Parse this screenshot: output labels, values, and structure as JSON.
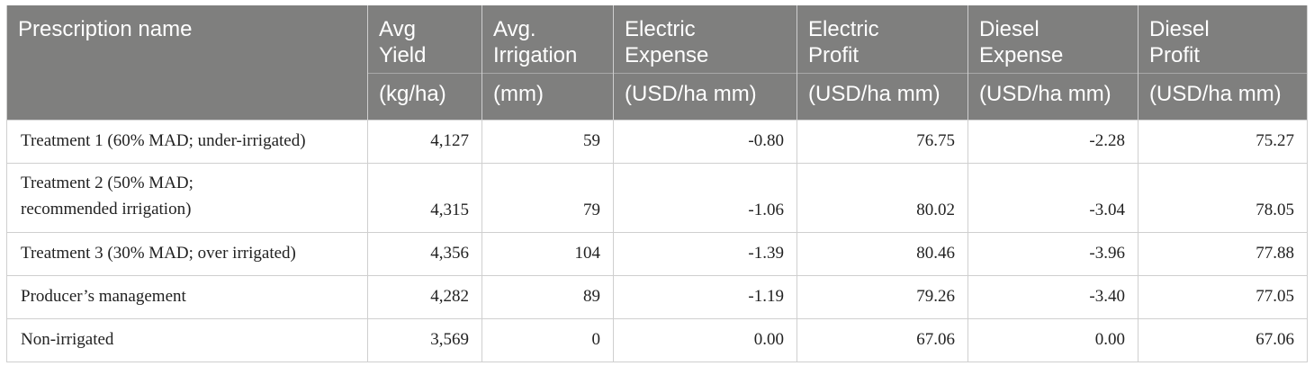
{
  "table": {
    "headers": [
      {
        "top": "Prescription name",
        "unit": ""
      },
      {
        "top": "Avg Yield",
        "unit": "(kg/ha)"
      },
      {
        "top": "Avg. Irrigation",
        "unit": "(mm)"
      },
      {
        "top": "Electric Expense",
        "unit": "(USD/ha mm)"
      },
      {
        "top": "Electric Profit",
        "unit": "(USD/ha mm)"
      },
      {
        "top": "Diesel Expense",
        "unit": "(USD/ha mm)"
      },
      {
        "top": "Diesel Profit",
        "unit": "(USD/ha mm)"
      }
    ],
    "header_lines": {
      "c1": [
        "Avg",
        "Yield"
      ],
      "c2": [
        "Avg.",
        "Irrigation"
      ],
      "c3": [
        "Electric",
        "Expense"
      ],
      "c4": [
        "Electric",
        "Profit"
      ],
      "c5": [
        "Diesel",
        "Expense"
      ],
      "c6": [
        "Diesel",
        "Profit"
      ]
    },
    "rows": [
      {
        "name": "Treatment 1 (60% MAD; under-irrigated)",
        "name_lines": [
          "Treatment 1 (60% MAD; under-irrigated)"
        ],
        "yield": "4,127",
        "irrigation": "59",
        "electric_expense": "-0.80",
        "electric_profit": "76.75",
        "diesel_expense": "-2.28",
        "diesel_profit": "75.27"
      },
      {
        "name": "Treatment 2 (50% MAD; recommended irrigation)",
        "name_lines": [
          "Treatment 2 (50% MAD;",
          "recommended irrigation)"
        ],
        "yield": "4,315",
        "irrigation": "79",
        "electric_expense": "-1.06",
        "electric_profit": "80.02",
        "diesel_expense": "-3.04",
        "diesel_profit": "78.05"
      },
      {
        "name": "Treatment 3 (30% MAD; over irrigated)",
        "name_lines": [
          "Treatment 3 (30% MAD; over irrigated)"
        ],
        "yield": "4,356",
        "irrigation": "104",
        "electric_expense": "-1.39",
        "electric_profit": "80.46",
        "diesel_expense": "-3.96",
        "diesel_profit": "77.88"
      },
      {
        "name": "Producer’s management",
        "name_lines": [
          "Producer’s management"
        ],
        "yield": "4,282",
        "irrigation": "89",
        "electric_expense": "-1.19",
        "electric_profit": "79.26",
        "diesel_expense": "-3.40",
        "diesel_profit": "77.05"
      },
      {
        "name": "Non-irrigated",
        "name_lines": [
          "Non-irrigated"
        ],
        "yield": "3,569",
        "irrigation": "0",
        "electric_expense": "0.00",
        "electric_profit": "67.06",
        "diesel_expense": "0.00",
        "diesel_profit": "67.06"
      }
    ]
  },
  "colors": {
    "header_bg": "#7f7f7e",
    "header_text": "#ffffff",
    "grid": "#cfcfcf"
  }
}
